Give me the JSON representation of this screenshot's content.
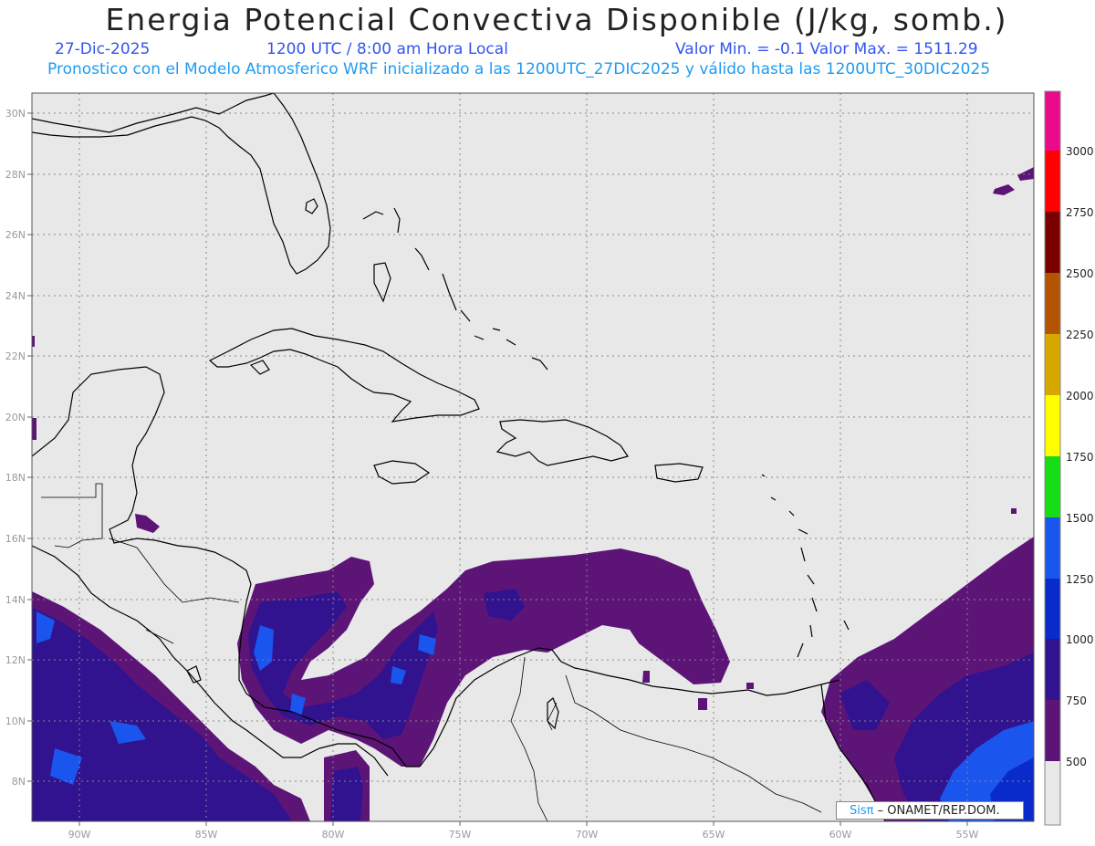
{
  "header": {
    "title": "Energia Potencial Convectiva Disponible (J/kg, somb.)",
    "date": "27-Dic-2025",
    "time": "1200 UTC / 8:00 am Hora Local",
    "min_max": "Valor Min. = -0.1  Valor Max. = 1511.29",
    "description": "Pronostico con el Modelo Atmosferico WRF inicializado a las 1200UTC_27DIC2025 y válido hasta las  1200UTC_30DIC2025"
  },
  "map": {
    "lat_labels": [
      "30N",
      "28N",
      "26N",
      "24N",
      "22N",
      "20N",
      "18N",
      "16N",
      "14N",
      "12N",
      "10N",
      "8N"
    ],
    "lon_labels": [
      "90W",
      "85W",
      "80W",
      "75W",
      "70W",
      "65W",
      "60W",
      "55W"
    ],
    "lat_range": [
      6.7,
      30.7
    ],
    "lon_range": [
      -91.8,
      -52.4
    ],
    "background_color": "#e8e8e8"
  },
  "colorbar": {
    "labels": [
      "3000",
      "2750",
      "2500",
      "2250",
      "2000",
      "1750",
      "1500",
      "1250",
      "1000",
      "750",
      "500"
    ],
    "colors": [
      "#e8e8e8",
      "#5c1577",
      "#31128f",
      "#0a2bcc",
      "#1a55ee",
      "#16dd16",
      "#ffff00",
      "#d7a800",
      "#b35400",
      "#7a0000",
      "#ff0000",
      "#ea0a8a"
    ]
  },
  "credit": {
    "sis": "Sisπ",
    "text": " – ONAMET/REP.DOM."
  }
}
